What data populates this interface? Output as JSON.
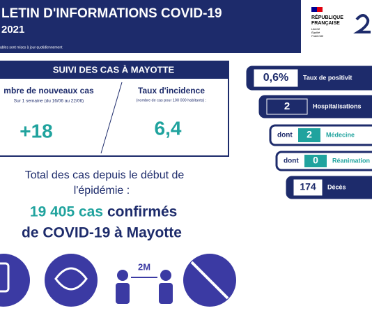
{
  "header": {
    "title": "LETIN D'INFORMATIONS COVID-19",
    "date": "2021",
    "note": "ables sont mises à jour quotidiennement",
    "logo": {
      "line1": "RÉPUBLIQUE",
      "line2": "FRANÇAISE",
      "motto1": "Liberté",
      "motto2": "Égalité",
      "motto3": "Fraternité"
    }
  },
  "cases_box": {
    "title": "SUIVI DES CAS À MAYOTTE",
    "new_cases": {
      "label": "mbre de nouveaux cas",
      "sub": "Sur 1 semaine (du 16/06 au 22/06)",
      "value": "+18"
    },
    "incidence": {
      "label": "Taux d'incidence",
      "sub": "(nombre de cas pour 100 000 habitants) :",
      "value": "6,4"
    }
  },
  "total": {
    "line1": "Total des cas depuis le début de",
    "line2": "l'épidémie :",
    "count": "19 405 cas",
    "confirmed": "confirmés",
    "line4": "de COVID-19 à Mayotte"
  },
  "indicators": [
    {
      "prefix": null,
      "value": "0,6%",
      "label": "Taux de positivit"
    },
    {
      "prefix": null,
      "value": "2",
      "label": "Hospitalisations"
    },
    {
      "prefix": "dont",
      "value": "2",
      "label": "Médecine"
    },
    {
      "prefix": "dont",
      "value": "0",
      "label": "Réanimation"
    },
    {
      "prefix": null,
      "value": "174",
      "label": "Décès"
    }
  ],
  "icons": {
    "distance": "2M"
  }
}
